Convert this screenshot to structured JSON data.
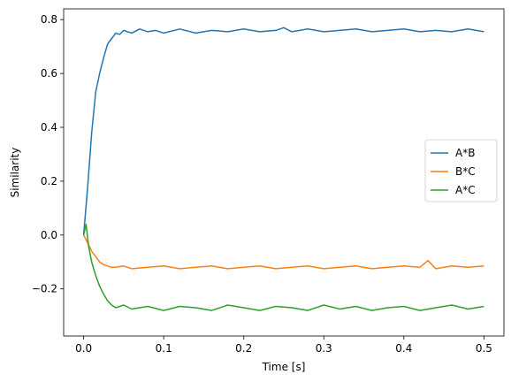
{
  "chart_data": {
    "type": "line",
    "title": "",
    "xlabel": "Time [s]",
    "ylabel": "Similarity",
    "xlim": [
      -0.025,
      0.525
    ],
    "ylim": [
      -0.375,
      0.84
    ],
    "xticks": [
      0.0,
      0.1,
      0.2,
      0.3,
      0.4,
      0.5
    ],
    "xtick_labels": [
      "0.0",
      "0.1",
      "0.2",
      "0.3",
      "0.4",
      "0.5"
    ],
    "yticks": [
      -0.2,
      0.0,
      0.2,
      0.4,
      0.6,
      0.8
    ],
    "ytick_labels": [
      "−0.2",
      "0.0",
      "0.2",
      "0.4",
      "0.6",
      "0.8"
    ],
    "grid": false,
    "legend_position": "center-right",
    "series": [
      {
        "name": "A*B",
        "color": "#1f77b4",
        "x": [
          0.0,
          0.005,
          0.01,
          0.015,
          0.02,
          0.025,
          0.03,
          0.035,
          0.04,
          0.045,
          0.05,
          0.06,
          0.07,
          0.08,
          0.09,
          0.1,
          0.12,
          0.14,
          0.16,
          0.18,
          0.2,
          0.22,
          0.24,
          0.25,
          0.26,
          0.28,
          0.3,
          0.32,
          0.34,
          0.36,
          0.38,
          0.4,
          0.42,
          0.44,
          0.46,
          0.48,
          0.5
        ],
        "y": [
          0.0,
          0.18,
          0.38,
          0.53,
          0.6,
          0.66,
          0.71,
          0.73,
          0.75,
          0.745,
          0.76,
          0.75,
          0.765,
          0.755,
          0.76,
          0.75,
          0.765,
          0.75,
          0.76,
          0.755,
          0.765,
          0.755,
          0.76,
          0.77,
          0.755,
          0.765,
          0.755,
          0.76,
          0.765,
          0.755,
          0.76,
          0.765,
          0.755,
          0.76,
          0.755,
          0.765,
          0.755
        ]
      },
      {
        "name": "B*C",
        "color": "#ff7f0e",
        "x": [
          0.0,
          0.005,
          0.01,
          0.015,
          0.02,
          0.025,
          0.03,
          0.035,
          0.04,
          0.05,
          0.06,
          0.08,
          0.1,
          0.12,
          0.14,
          0.16,
          0.18,
          0.2,
          0.22,
          0.24,
          0.26,
          0.28,
          0.3,
          0.32,
          0.34,
          0.36,
          0.38,
          0.4,
          0.42,
          0.43,
          0.44,
          0.46,
          0.48,
          0.5
        ],
        "y": [
          0.0,
          -0.03,
          -0.06,
          -0.08,
          -0.1,
          -0.11,
          -0.115,
          -0.12,
          -0.12,
          -0.115,
          -0.125,
          -0.12,
          -0.115,
          -0.125,
          -0.12,
          -0.115,
          -0.125,
          -0.12,
          -0.115,
          -0.125,
          -0.12,
          -0.115,
          -0.125,
          -0.12,
          -0.115,
          -0.125,
          -0.12,
          -0.115,
          -0.12,
          -0.095,
          -0.125,
          -0.115,
          -0.12,
          -0.115
        ]
      },
      {
        "name": "A*C",
        "color": "#2ca02c",
        "x": [
          0.0,
          0.003,
          0.006,
          0.01,
          0.015,
          0.02,
          0.025,
          0.03,
          0.035,
          0.04,
          0.05,
          0.06,
          0.08,
          0.1,
          0.12,
          0.14,
          0.16,
          0.18,
          0.2,
          0.22,
          0.24,
          0.26,
          0.28,
          0.3,
          0.32,
          0.34,
          0.36,
          0.38,
          0.4,
          0.42,
          0.44,
          0.46,
          0.48,
          0.5
        ],
        "y": [
          0.0,
          0.04,
          -0.04,
          -0.1,
          -0.15,
          -0.19,
          -0.22,
          -0.245,
          -0.26,
          -0.27,
          -0.26,
          -0.275,
          -0.265,
          -0.28,
          -0.265,
          -0.27,
          -0.28,
          -0.26,
          -0.27,
          -0.28,
          -0.265,
          -0.27,
          -0.28,
          -0.26,
          -0.275,
          -0.265,
          -0.28,
          -0.27,
          -0.265,
          -0.28,
          -0.27,
          -0.26,
          -0.275,
          -0.265
        ]
      }
    ]
  }
}
